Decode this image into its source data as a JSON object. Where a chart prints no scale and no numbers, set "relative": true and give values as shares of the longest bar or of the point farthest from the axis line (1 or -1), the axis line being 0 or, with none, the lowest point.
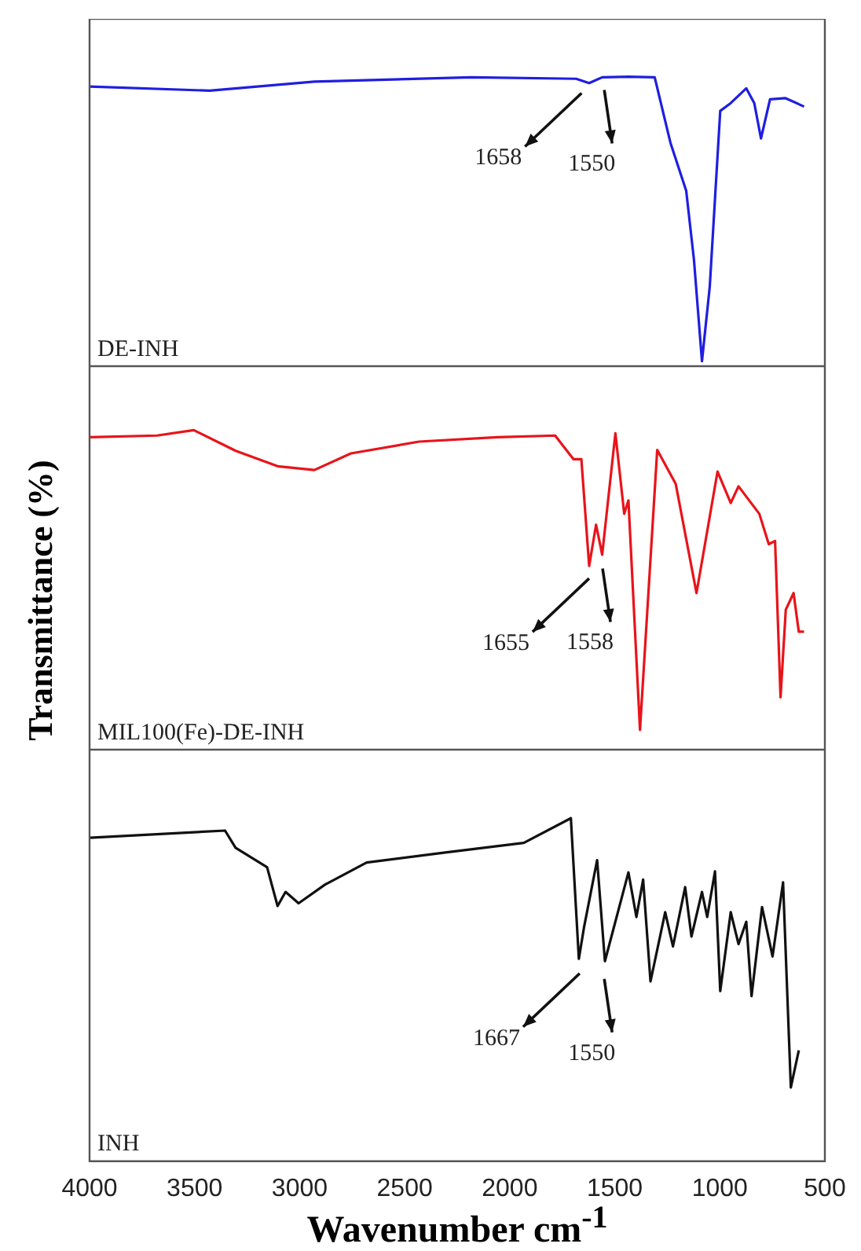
{
  "chart_data": [
    {
      "type": "line",
      "relative": true,
      "xlim": [
        4000,
        500
      ],
      "tick_labels": false,
      "x": [
        4000,
        3429,
        2930,
        2183,
        1684,
        1622,
        1560,
        1435,
        1310,
        1235,
        1160,
        1123,
        1085,
        1048,
        998,
        948,
        874,
        836,
        804,
        761,
        687,
        599
      ],
      "series": [
        {
          "name": "DE-INH",
          "color": "#1f1fe0",
          "values": [
            0.966,
            0.952,
            0.983,
            0.998,
            0.993,
            0.978,
            0.998,
            1.0,
            0.998,
            0.772,
            0.606,
            0.367,
            0.017,
            0.274,
            0.882,
            0.909,
            0.96,
            0.909,
            0.787,
            0.922,
            0.926,
            0.897
          ]
        }
      ],
      "annotations": [
        {
          "text": "1658",
          "x": 1658,
          "y": 0.987
        },
        {
          "text": "1550",
          "x": 1550,
          "y": 0.998
        }
      ]
    },
    {
      "type": "line",
      "relative": true,
      "xlim": [
        4000,
        500
      ],
      "tick_labels": false,
      "ylabel": "Transmittance (%)",
      "x": [
        4000,
        3679,
        3504,
        3304,
        3105,
        2930,
        2756,
        2432,
        2058,
        1784,
        1697,
        1659,
        1622,
        1589,
        1560,
        1497,
        1455,
        1435,
        1380,
        1298,
        1210,
        1111,
        1011,
        948,
        911,
        812,
        767,
        737,
        711,
        686,
        649,
        624,
        599
      ],
      "series": [
        {
          "name": "MIL100(Fe)-DE-INH",
          "color": "#e8141a",
          "values": [
            0.978,
            0.983,
            1.0,
            0.935,
            0.887,
            0.875,
            0.927,
            0.964,
            0.978,
            0.983,
            0.909,
            0.909,
            0.575,
            0.704,
            0.61,
            0.99,
            0.738,
            0.78,
            0.062,
            0.938,
            0.832,
            0.49,
            0.87,
            0.772,
            0.824,
            0.738,
            0.643,
            0.653,
            0.164,
            0.438,
            0.49,
            0.369,
            0.369
          ]
        }
      ],
      "annotations": [
        {
          "text": "1655",
          "x": 1622,
          "y": 0.575
        },
        {
          "text": "1558",
          "x": 1558,
          "y": 0.606
        }
      ]
    },
    {
      "type": "line",
      "relative": true,
      "xlim": [
        4000,
        500
      ],
      "xticks": [
        4000,
        3500,
        3000,
        2500,
        2000,
        1500,
        1000,
        500
      ],
      "tick_labels": "x",
      "xlabel": "Wavenumber cm$^{-1}$",
      "x": [
        4000,
        3355,
        3305,
        3155,
        3105,
        3067,
        3005,
        2880,
        2681,
        2307,
        1933,
        1709,
        1671,
        1646,
        1584,
        1547,
        1435,
        1397,
        1365,
        1330,
        1260,
        1223,
        1165,
        1135,
        1085,
        1060,
        1023,
        998,
        948,
        911,
        874,
        849,
        799,
        749,
        699,
        662,
        624
      ],
      "series": [
        {
          "name": "INH",
          "color": "#111111",
          "values": [
            0.943,
            0.964,
            0.914,
            0.857,
            0.744,
            0.785,
            0.752,
            0.806,
            0.871,
            0.9,
            0.928,
            1.0,
            0.59,
            0.683,
            0.878,
            0.583,
            0.842,
            0.712,
            0.821,
            0.524,
            0.726,
            0.626,
            0.799,
            0.655,
            0.785,
            0.712,
            0.845,
            0.496,
            0.726,
            0.633,
            0.698,
            0.481,
            0.741,
            0.597,
            0.813,
            0.215,
            0.323
          ]
        }
      ],
      "annotations": [
        {
          "text": "1667",
          "x": 1667,
          "y": 0.584
        },
        {
          "text": "1550",
          "x": 1550,
          "y": 0.568
        }
      ]
    }
  ]
}
